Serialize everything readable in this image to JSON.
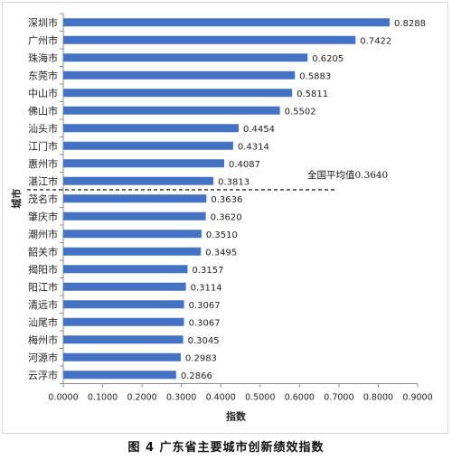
{
  "chart_data": {
    "type": "bar",
    "orientation": "horizontal",
    "categories": [
      "深圳市",
      "广州市",
      "珠海市",
      "东莞市",
      "中山市",
      "佛山市",
      "汕头市",
      "江门市",
      "惠州市",
      "湛江市",
      "茂名市",
      "肇庆市",
      "潮州市",
      "韶关市",
      "揭阳市",
      "阳江市",
      "清远市",
      "汕尾市",
      "梅州市",
      "河源市",
      "云浮市"
    ],
    "values": [
      0.8288,
      0.7422,
      0.6205,
      0.5883,
      0.5811,
      0.5502,
      0.4454,
      0.4314,
      0.4087,
      0.3813,
      0.3636,
      0.362,
      0.351,
      0.3495,
      0.3157,
      0.3114,
      0.3067,
      0.3067,
      0.3045,
      0.2983,
      0.2866
    ],
    "value_labels": [
      "0.8288",
      "0.7422",
      "0.6205",
      "0.5883",
      "0.5811",
      "0.5502",
      "0.4454",
      "0.4314",
      "0.4087",
      "0.3813",
      "0.3636",
      "0.3620",
      "0.3510",
      "0.3495",
      "0.3157",
      "0.3114",
      "0.3067",
      "0.3067",
      "0.3045",
      "0.2983",
      "0.2866"
    ],
    "xlabel": "指数",
    "ylabel": "城市",
    "xlim": [
      0,
      0.9
    ],
    "xticks": [
      "0.0000",
      "0.1000",
      "0.2000",
      "0.3000",
      "0.4000",
      "0.5000",
      "0.6000",
      "0.7000",
      "0.8000",
      "0.9000"
    ],
    "reference_line": {
      "value": 0.364,
      "label": "全国平均值0.3640",
      "style": "dashed"
    },
    "bar_color": "#4472c4",
    "grid": false,
    "legend": "none"
  },
  "caption": "图 4 广东省主要城市创新绩效指数"
}
